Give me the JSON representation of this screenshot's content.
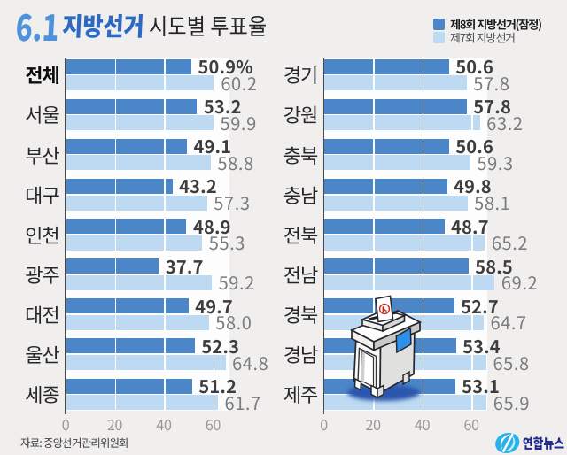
{
  "title": {
    "date": "6.1",
    "highlight": "지방선거",
    "rest": "시도별 투표율"
  },
  "legend": [
    {
      "label": "제8회 지방선거(잠정)",
      "color": "#4a86c8",
      "bold": true
    },
    {
      "label": "제7회 지방선거",
      "color": "#bed9f2",
      "bold": false
    }
  ],
  "chart_data": {
    "type": "bar",
    "orientation": "horizontal",
    "title": "6.1 지방선거 시도별 투표율",
    "series_names": [
      "제8회 지방선거(잠정)",
      "제7회 지방선거"
    ],
    "unit": "%",
    "xlim": [
      0,
      66
    ],
    "ticks": [
      0,
      20,
      40,
      60
    ],
    "panels": [
      {
        "rows": [
          {
            "label": "전체",
            "current": 50.9,
            "previous": 60.2,
            "current_label": "50.9%",
            "previous_label": "60.2",
            "emphasis": true
          },
          {
            "label": "서울",
            "current": 53.2,
            "previous": 59.9,
            "current_label": "53.2",
            "previous_label": "59.9",
            "emphasis": false
          },
          {
            "label": "부산",
            "current": 49.1,
            "previous": 58.8,
            "current_label": "49.1",
            "previous_label": "58.8",
            "emphasis": false
          },
          {
            "label": "대구",
            "current": 43.2,
            "previous": 57.3,
            "current_label": "43.2",
            "previous_label": "57.3",
            "emphasis": false
          },
          {
            "label": "인천",
            "current": 48.9,
            "previous": 55.3,
            "current_label": "48.9",
            "previous_label": "55.3",
            "emphasis": false
          },
          {
            "label": "광주",
            "current": 37.7,
            "previous": 59.2,
            "current_label": "37.7",
            "previous_label": "59.2",
            "emphasis": false
          },
          {
            "label": "대전",
            "current": 49.7,
            "previous": 58.0,
            "current_label": "49.7",
            "previous_label": "58.0",
            "emphasis": false
          },
          {
            "label": "울산",
            "current": 52.3,
            "previous": 64.8,
            "current_label": "52.3",
            "previous_label": "64.8",
            "emphasis": false
          },
          {
            "label": "세종",
            "current": 51.2,
            "previous": 61.7,
            "current_label": "51.2",
            "previous_label": "61.7",
            "emphasis": false
          }
        ]
      },
      {
        "rows": [
          {
            "label": "경기",
            "current": 50.6,
            "previous": 57.8,
            "current_label": "50.6",
            "previous_label": "57.8",
            "emphasis": false
          },
          {
            "label": "강원",
            "current": 57.8,
            "previous": 63.2,
            "current_label": "57.8",
            "previous_label": "63.2",
            "emphasis": false
          },
          {
            "label": "충북",
            "current": 50.6,
            "previous": 59.3,
            "current_label": "50.6",
            "previous_label": "59.3",
            "emphasis": false
          },
          {
            "label": "충남",
            "current": 49.8,
            "previous": 58.1,
            "current_label": "49.8",
            "previous_label": "58.1",
            "emphasis": false
          },
          {
            "label": "전북",
            "current": 48.7,
            "previous": 65.2,
            "current_label": "48.7",
            "previous_label": "65.2",
            "emphasis": false
          },
          {
            "label": "전남",
            "current": 58.5,
            "previous": 69.2,
            "current_label": "58.5",
            "previous_label": "69.2",
            "emphasis": false
          },
          {
            "label": "경북",
            "current": 52.7,
            "previous": 64.7,
            "current_label": "52.7",
            "previous_label": "64.7",
            "emphasis": false
          },
          {
            "label": "경남",
            "current": 53.4,
            "previous": 65.8,
            "current_label": "53.4",
            "previous_label": "65.8",
            "emphasis": false
          },
          {
            "label": "제주",
            "current": 53.1,
            "previous": 65.9,
            "current_label": "53.1",
            "previous_label": "65.9",
            "emphasis": false
          }
        ]
      }
    ],
    "legend_position": "top-right",
    "grid": "white vertical gridlines at ticks, visible over bars"
  },
  "footer": {
    "source": "자료: 중앙선거관리위원회"
  },
  "logo": {
    "name": "연합뉴스"
  },
  "illustration": {
    "name": "ballot-box",
    "description": "isometric ballot box with ballot paper"
  },
  "colors": {
    "background": "#f0efed",
    "plot_background": "#fdfdfd",
    "bar_current": "#4a86c8",
    "bar_previous": "#bed9f2",
    "axis": "#48484b",
    "grid": "#ffffff",
    "value_current": "#3d3d40",
    "value_previous": "#7b7c7f",
    "row_label": "#26262a",
    "row_label_emphasis": "#0d0d10",
    "tick": "#98989b",
    "title_date": "#4e92db",
    "title_highlight": "#2d68c2",
    "title_rest": "#232329",
    "legend_bold_text": "#1c1c1f",
    "legend_text": "#515257",
    "footer": "#424246",
    "logo_cyan": "#29b5ea",
    "logo_navy": "#212a8e",
    "shadow_blue": "#2f5fb0"
  }
}
